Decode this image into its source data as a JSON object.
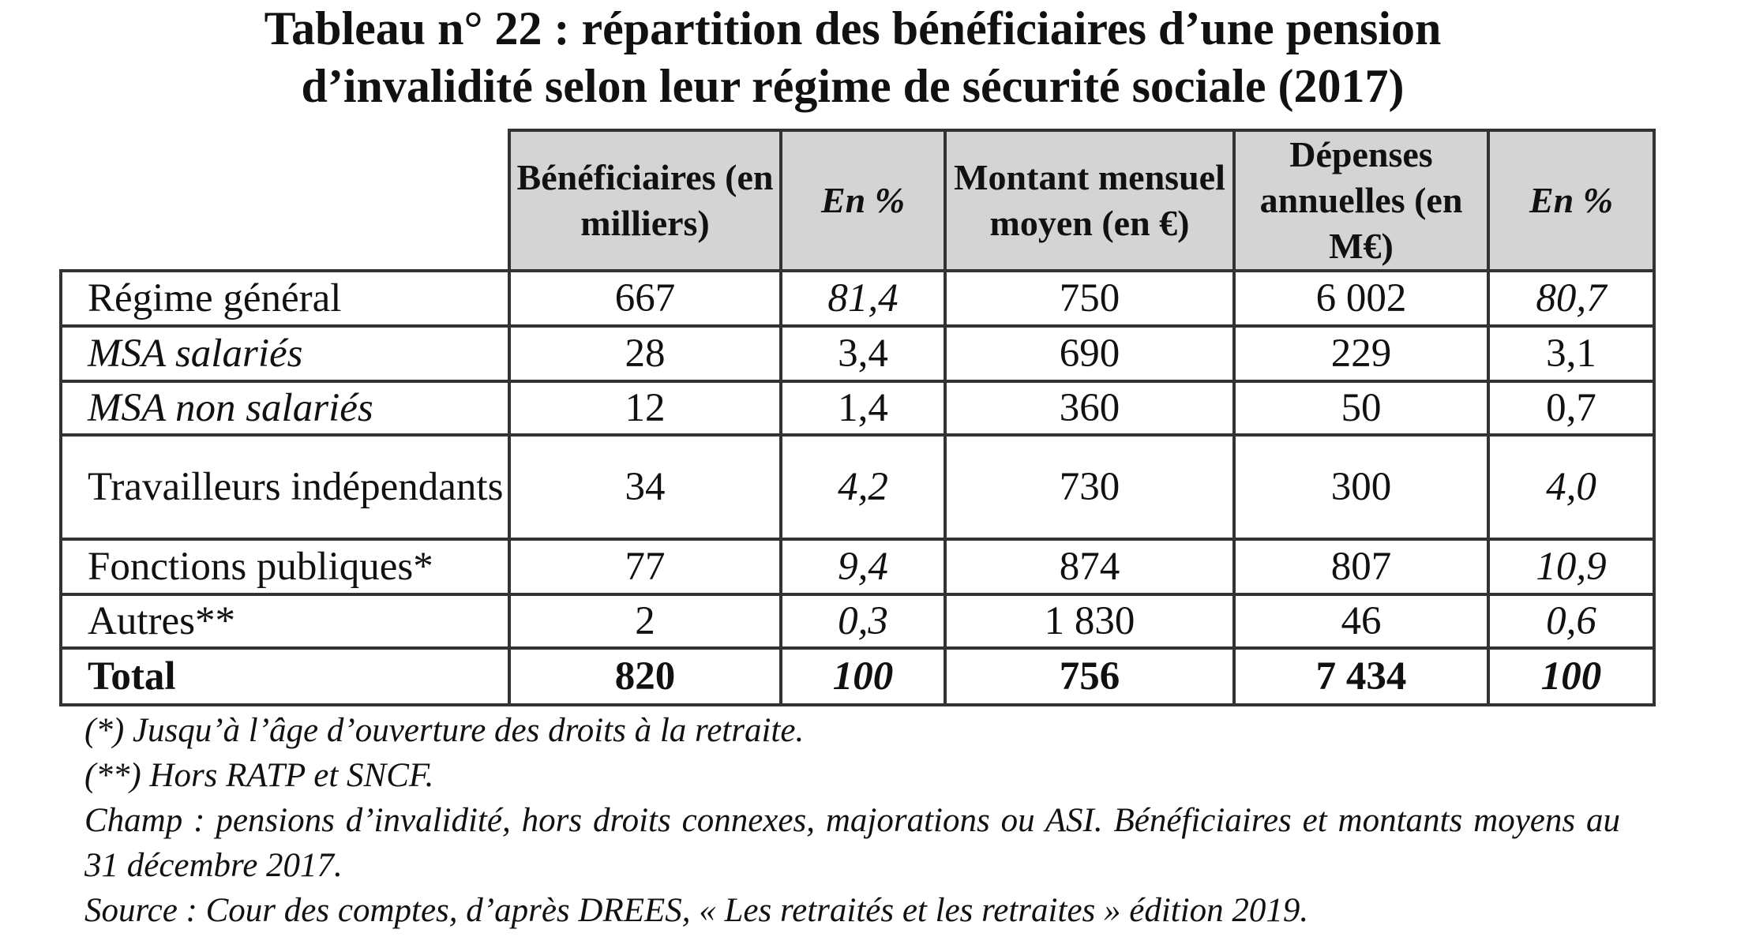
{
  "title": {
    "line1": "Tableau n° 22 : répartition des bénéficiaires d’une pension",
    "line2": "d’invalidité selon leur régime de sécurité sociale (2017)"
  },
  "table": {
    "headers": [
      "Bénéficiaires (en milliers)",
      "En %",
      "Montant mensuel moyen (en €)",
      "Dépenses annuelles (en M€)",
      "En %"
    ],
    "rows": [
      {
        "label": "Régime général",
        "beneficiaires": "667",
        "pct_benef": "81,4",
        "montant": "750",
        "depenses": "6 002",
        "pct_dep": "80,7"
      },
      {
        "label": "MSA salariés",
        "beneficiaires": "28",
        "pct_benef": "3,4",
        "montant": "690",
        "depenses": "229",
        "pct_dep": "3,1"
      },
      {
        "label": "MSA non salariés",
        "beneficiaires": "12",
        "pct_benef": "1,4",
        "montant": "360",
        "depenses": "50",
        "pct_dep": "0,7"
      },
      {
        "label": "Travailleurs indépendants",
        "beneficiaires": "34",
        "pct_benef": "4,2",
        "montant": "730",
        "depenses": "300",
        "pct_dep": "4,0"
      },
      {
        "label": "Fonctions publiques*",
        "beneficiaires": "77",
        "pct_benef": "9,4",
        "montant": "874",
        "depenses": "807",
        "pct_dep": "10,9"
      },
      {
        "label": "Autres**",
        "beneficiaires": "2",
        "pct_benef": "0,3",
        "montant": "1 830",
        "depenses": "46",
        "pct_dep": "0,6"
      },
      {
        "label": "Total",
        "beneficiaires": "820",
        "pct_benef": "100",
        "montant": "756",
        "depenses": "7 434",
        "pct_dep": "100"
      }
    ]
  },
  "notes": {
    "note1": "(*) Jusqu’à l’âge d’ouverture des droits à la retraite.",
    "note2": "(**) Hors RATP et SNCF.",
    "champ": "Champ : pensions d’invalidité, hors droits connexes, majorations ou ASI. Bénéficiaires et montants moyens au 31 décembre 2017.",
    "source": "Source : Cour des comptes, d’après DREES, « Les retraités et les retraites » édition 2019."
  }
}
